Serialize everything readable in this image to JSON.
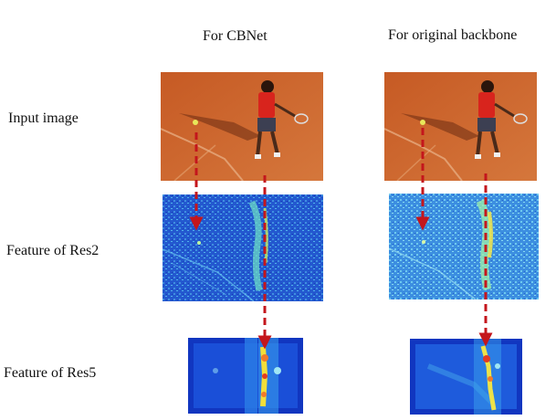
{
  "columns": {
    "cbnet": "For CBNet",
    "original": "For original backbone"
  },
  "rows": {
    "input": "Input image",
    "res2": "Feature of  Res2",
    "res5": "Feature of Res5"
  },
  "colors": {
    "clay": "#c9642c",
    "feature_blue": "#1f5fd6",
    "feature_cyan": "#4fb4e8",
    "heat_hot": "#f6e23a",
    "arrow": "#c4161c"
  }
}
